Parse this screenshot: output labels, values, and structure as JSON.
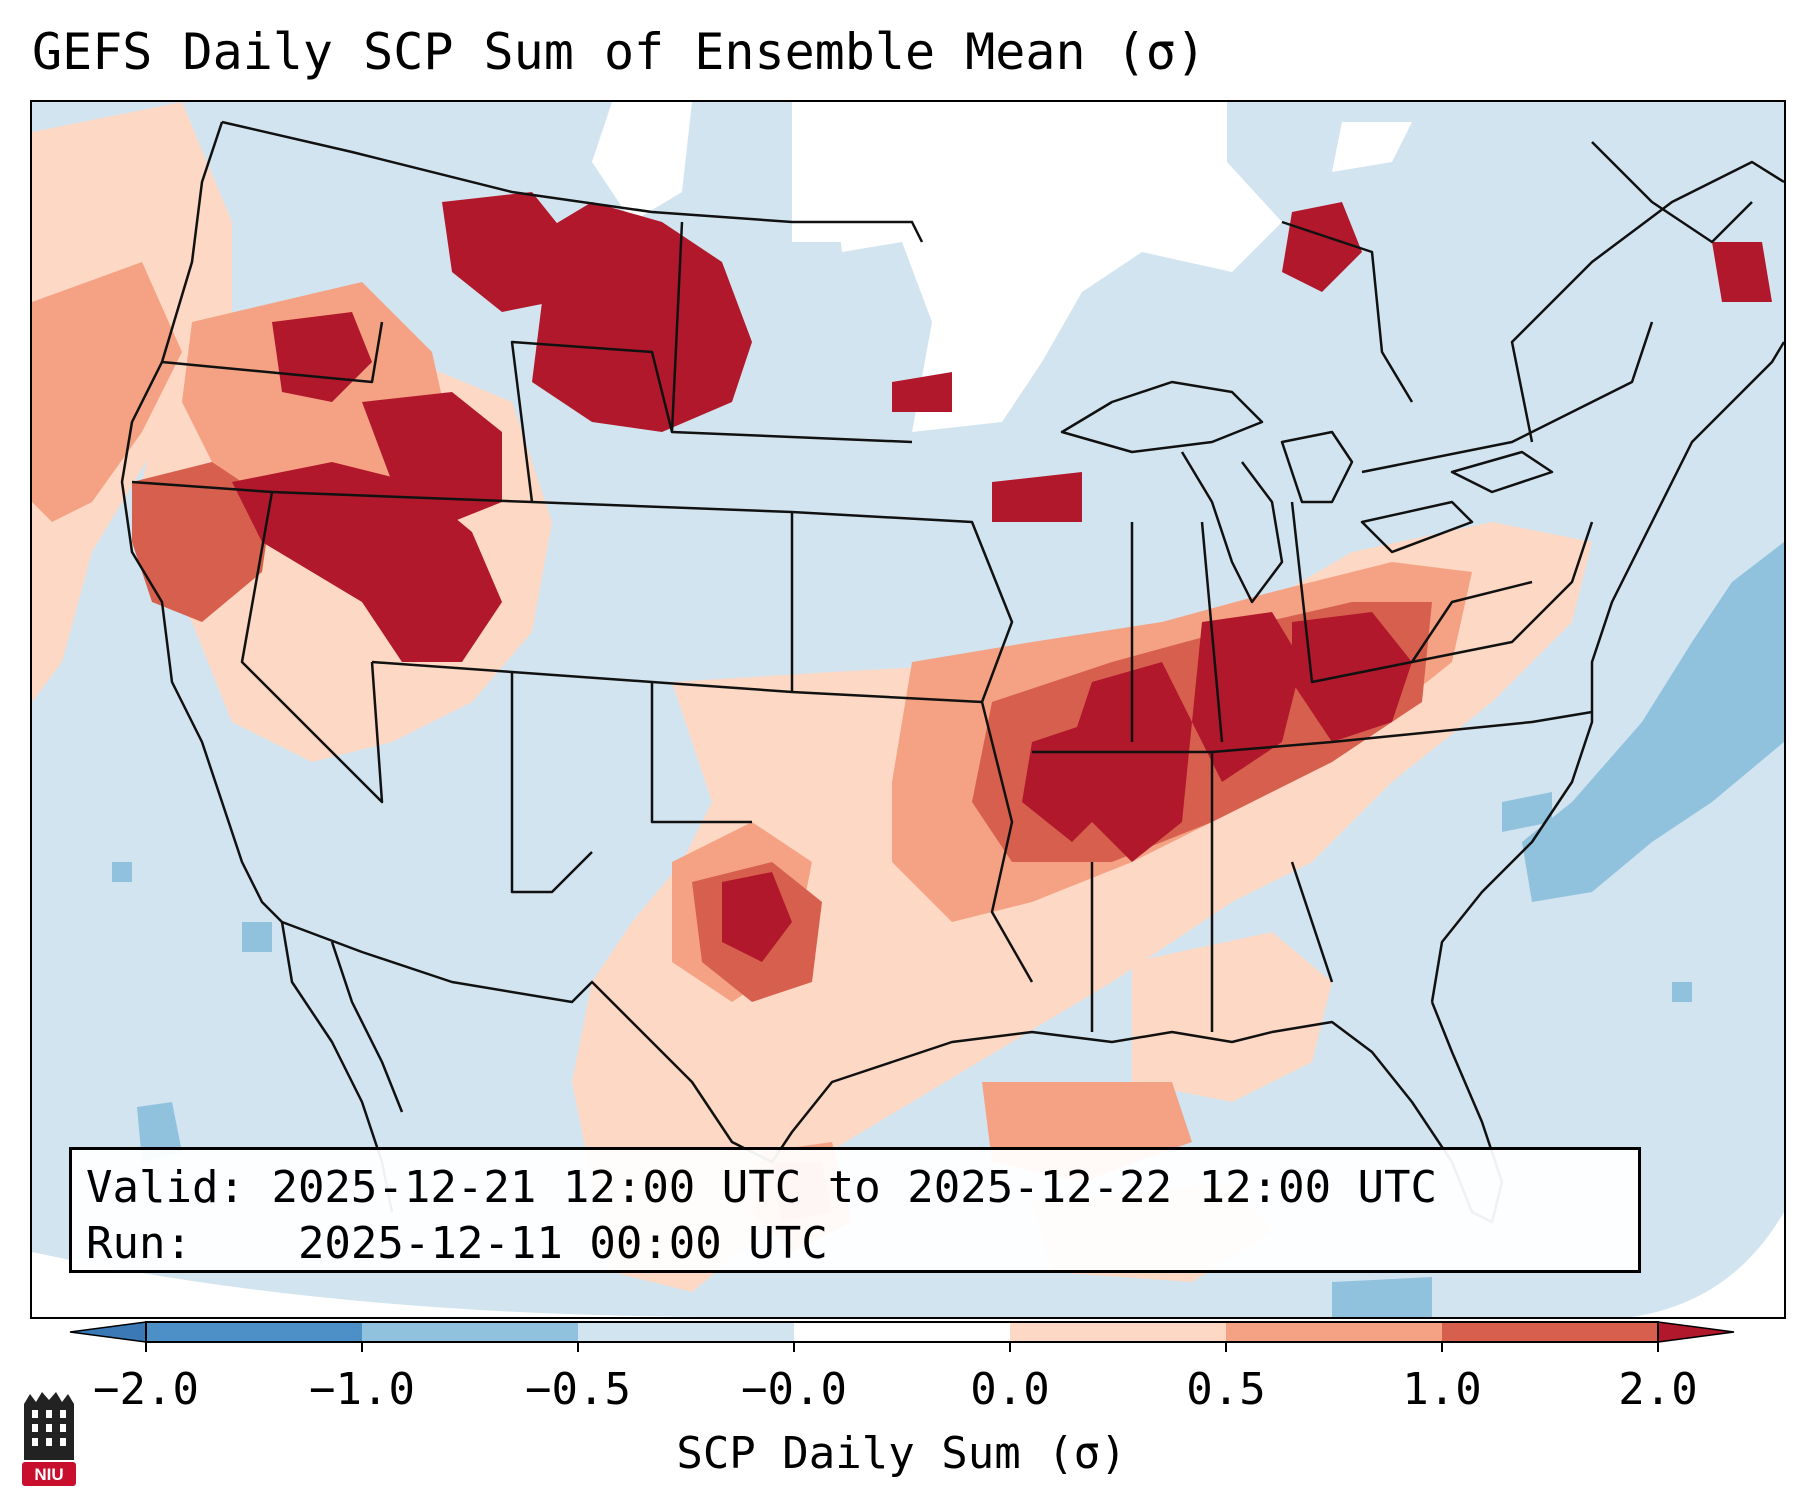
{
  "title": "GEFS Daily SCP Sum of Ensemble Mean (σ)",
  "info": {
    "valid_label": "Valid:",
    "valid_value": "2025-12-21 12:00 UTC to 2025-12-22 12:00 UTC",
    "run_label": "Run:",
    "run_value": "2025-12-11 00:00 UTC"
  },
  "colorbar": {
    "label": "SCP Daily Sum (σ)",
    "ticks": [
      "−2.0",
      "−1.0",
      "−0.5",
      "−0.0",
      "0.0",
      "0.5",
      "1.0",
      "2.0"
    ],
    "colors": {
      "under": "#3a78b6",
      "bin_n2_n1": "#4d8fc7",
      "bin_n1_n05": "#90c2de",
      "bin_n05_0": "#d2e4f0",
      "bin_0": "#ffffff",
      "bin_0_05": "#fdd8c4",
      "bin_05_1": "#f4a283",
      "bin_1_2": "#d6604d",
      "over": "#b2182b"
    }
  },
  "map_colors": {
    "background": "#d2e4f0",
    "white": "#ffffff",
    "light_red": "#fdd8c4",
    "mid_red": "#f4a283",
    "red": "#d6604d",
    "dark_red": "#b2182b",
    "blue": "#90c2de",
    "outline": "#111111"
  },
  "logo": {
    "text": "NIU",
    "color": "#c8102e"
  }
}
